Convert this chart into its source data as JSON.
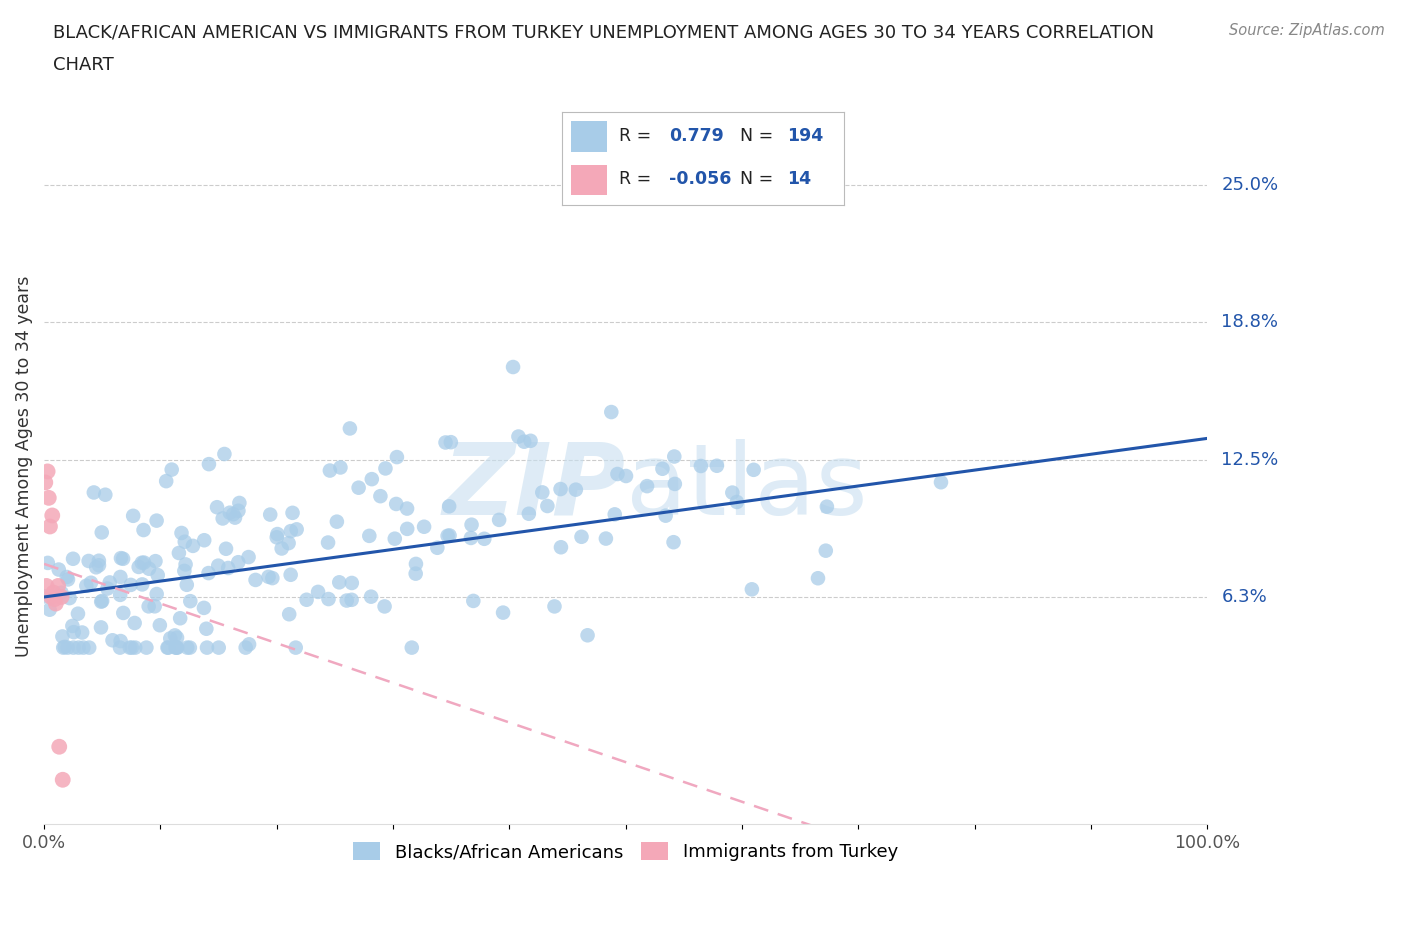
{
  "title_line1": "BLACK/AFRICAN AMERICAN VS IMMIGRANTS FROM TURKEY UNEMPLOYMENT AMONG AGES 30 TO 34 YEARS CORRELATION",
  "title_line2": "CHART",
  "source": "Source: ZipAtlas.com",
  "ylabel": "Unemployment Among Ages 30 to 34 years",
  "xlim": [
    0.0,
    1.0
  ],
  "ylim": [
    -0.04,
    0.285
  ],
  "yticks": [
    0.063,
    0.125,
    0.188,
    0.25
  ],
  "ytick_labels": [
    "6.3%",
    "12.5%",
    "18.8%",
    "25.0%"
  ],
  "r_blue": 0.779,
  "n_blue": 194,
  "r_pink": -0.056,
  "n_pink": 14,
  "blue_scatter_color": "#a8cce8",
  "pink_scatter_color": "#f4a8b8",
  "blue_line_color": "#2255aa",
  "pink_line_color": "#f0a8c0",
  "watermark_color": "#c8dff0",
  "legend_text_color": "#2255aa",
  "background_color": "#ffffff",
  "grid_color": "#cccccc",
  "title_color": "#222222",
  "source_color": "#888888",
  "ylabel_color": "#333333",
  "tick_color": "#555555"
}
